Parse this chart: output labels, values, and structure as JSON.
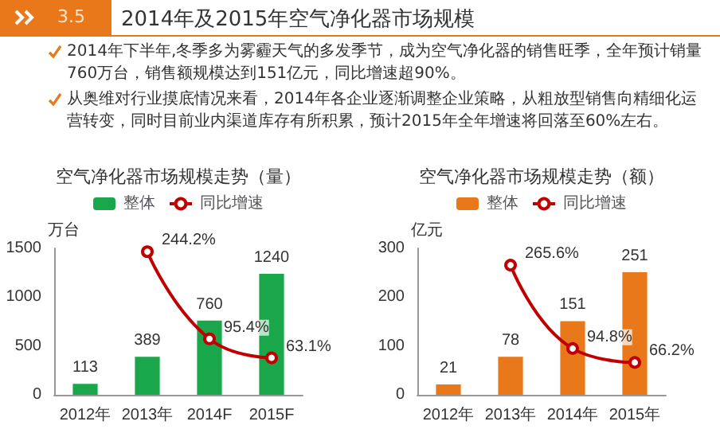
{
  "chart_data": [
    {
      "type": "bar",
      "title": "空气净化器市场规模走势（量）",
      "categories": [
        "2012年",
        "2013年",
        "2014F",
        "2015F"
      ],
      "ylabel": "万台",
      "ylim": [
        0,
        1500
      ],
      "yticks": [
        0,
        500,
        1000,
        1500
      ],
      "legend": "top",
      "data_labels": true,
      "annotations": [
        "3.5",
        "2014年及2015年空气净化器市场规模",
        "2014年下半年,冬季多为雾霾天气的多发季节，成为空气净化器的销售旺季，全年预计销量760万台，销售额规模达到151亿元，同比增速超90%。",
        "从奥维对行业摸底情况来看，2014年各企业逐渐调整企业策略，从粗放型销售向精细化运营转变，同时目前业内渠道库存有所积累，预计2015年全年增速将回落至60%左右。"
      ],
      "series": [
        {
          "name": "整体",
          "color": "#1aa64a",
          "values": [
            113,
            389,
            760,
            1240
          ]
        },
        {
          "name": "同比增速",
          "type": "line",
          "axis": "y2",
          "color": "#c00000",
          "marker": "circle",
          "values": [
            null,
            244.2,
            95.4,
            63.1
          ],
          "value_labels": [
            null,
            "244.2%",
            "95.4%",
            "63.1%"
          ]
        }
      ]
    },
    {
      "type": "bar",
      "title": "空气净化器市场规模走势（额）",
      "categories": [
        "2012年",
        "2013年",
        "2014年",
        "2015年"
      ],
      "ylabel": "亿元",
      "ylim": [
        0,
        300
      ],
      "yticks": [
        0,
        100,
        200,
        300
      ],
      "legend": "top",
      "data_labels": true,
      "series": [
        {
          "name": "整体",
          "color": "#e8781a",
          "values": [
            21,
            78,
            151,
            251
          ]
        },
        {
          "name": "同比增速",
          "type": "line",
          "axis": "y2",
          "color": "#c00000",
          "marker": "circle",
          "values": [
            null,
            265.6,
            94.8,
            66.2
          ],
          "value_labels": [
            null,
            "265.6%",
            "94.8%",
            "66.2%"
          ]
        }
      ]
    }
  ]
}
